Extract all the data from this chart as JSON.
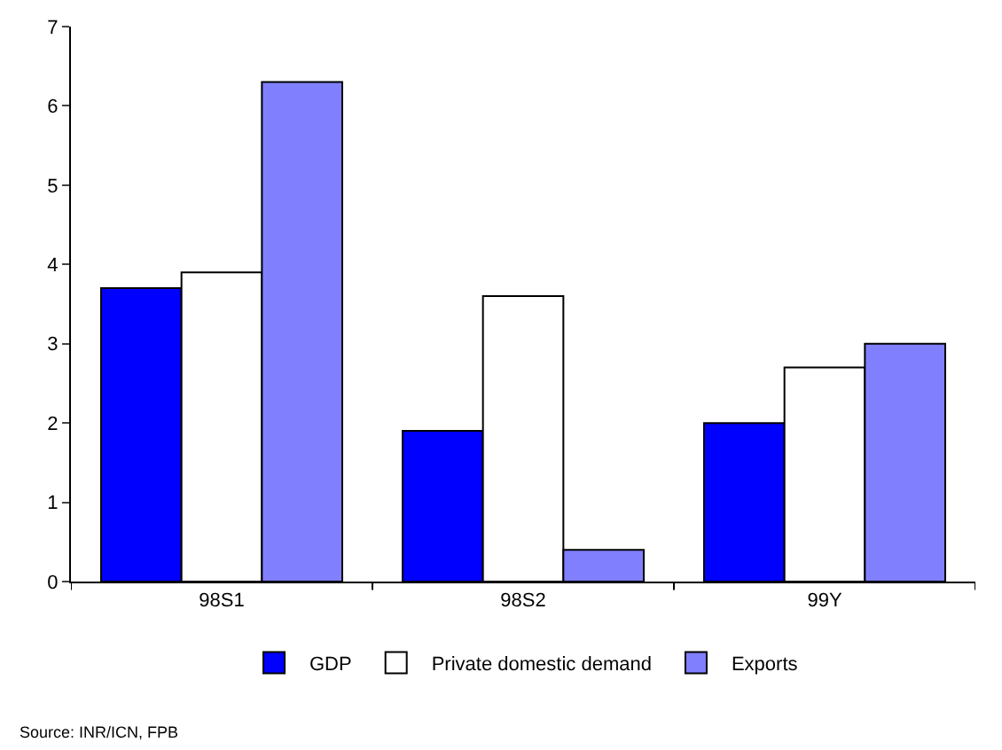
{
  "chart_data": {
    "type": "bar",
    "categories": [
      "98S1",
      "98S2",
      "99Y"
    ],
    "series": [
      {
        "name": "GDP",
        "color": "#0000ff",
        "values": [
          3.7,
          1.9,
          2.0
        ]
      },
      {
        "name": "Private domestic demand",
        "color": "#ffffff",
        "values": [
          3.9,
          3.6,
          2.7
        ]
      },
      {
        "name": "Exports",
        "color": "#8080ff",
        "values": [
          6.3,
          0.4,
          3.0
        ]
      }
    ],
    "ylim": [
      0,
      7
    ],
    "yticks": [
      0,
      1,
      2,
      3,
      4,
      5,
      6,
      7
    ],
    "grid": false,
    "legend": "bottom",
    "annotations": [
      "Source: INR/ICN, FPB"
    ]
  }
}
